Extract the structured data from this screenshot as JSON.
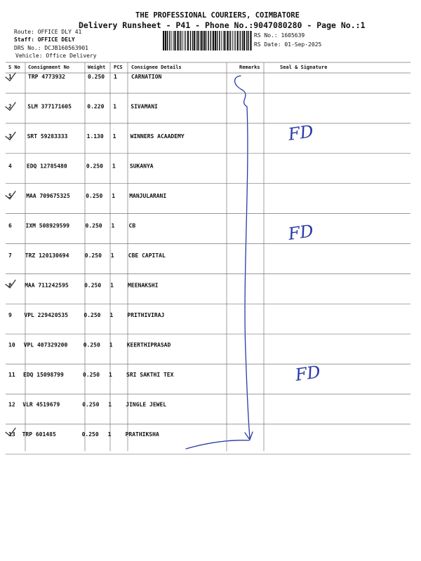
{
  "header": {
    "company": "THE PROFESSIONAL COURIERS, COIMBATORE",
    "title": "Delivery Runsheet - P41 - Phone No.:9047080280 - Page No.:1"
  },
  "info": {
    "route": "Route: OFFICE DLY 41",
    "staff": "Staff: OFFICE DELY",
    "drs": "DRS No.: DCJB160563901",
    "vehicle": "Vehicle: Office Delivery",
    "rs_no": "RS No.: 1605639",
    "rs_date": "RS Date: 01-Sep-2025"
  },
  "table": {
    "columns": [
      "S No",
      "Consignment No",
      "Weight",
      "PCS",
      "Consignee Details",
      "Remarks",
      "Seal & Signature"
    ],
    "rows": [
      [
        "1",
        "TRP 4773932",
        "0.250",
        "1",
        "CARNATION"
      ],
      [
        "2",
        "SLM 377171605",
        "0.220",
        "1",
        "SIVAMANI"
      ],
      [
        "3",
        "SRT 59283333",
        "1.130",
        "1",
        "WINNERS ACAADEMY"
      ],
      [
        "4",
        "EDQ 12785480",
        "0.250",
        "1",
        "SUKANYA"
      ],
      [
        "5",
        "MAA 709675325",
        "0.250",
        "1",
        "MANJULARANI"
      ],
      [
        "6",
        "IXM 508929599",
        "0.250",
        "1",
        "CB"
      ],
      [
        "7",
        "TRZ 120130694",
        "0.250",
        "1",
        "CBE CAPITAL"
      ],
      [
        "8",
        "MAA 711242595",
        "0.250",
        "1",
        "MEENAKSHI"
      ],
      [
        "9",
        "VPL 229420535",
        "0.250",
        "1",
        "PRITHIVIRAJ"
      ],
      [
        "10",
        "VPL 407329200",
        "0.250",
        "1",
        "KEERTHIPRASAD"
      ],
      [
        "11",
        "EDQ 15098799",
        "0.250",
        "1",
        "SRI SAKTHI TEX"
      ],
      [
        "12",
        "VLR 4519679",
        "0.250",
        "1",
        "JINGLE JEWEL"
      ],
      [
        "13",
        "TRP 601485",
        "0.250",
        "1",
        "PRATHIKSHA"
      ]
    ]
  },
  "annotations": [
    "FD",
    "FD",
    "FD"
  ]
}
